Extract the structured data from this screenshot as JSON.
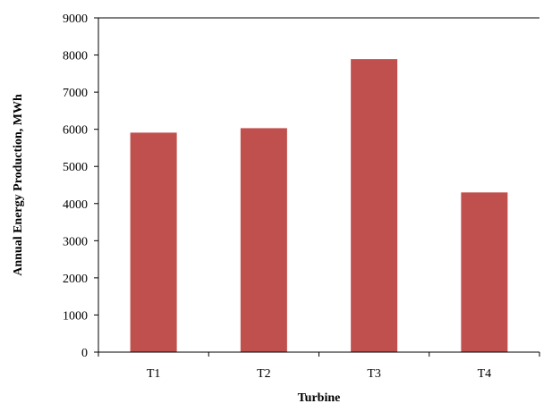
{
  "chart_data": {
    "type": "bar",
    "categories": [
      "T1",
      "T2",
      "T3",
      "T4"
    ],
    "values": [
      5910,
      6030,
      7890,
      4300
    ],
    "xlabel": "Turbine",
    "ylabel": "Annual Energy Production, MWh",
    "ylim": [
      0,
      9000
    ],
    "yticks": [
      0,
      1000,
      2000,
      3000,
      4000,
      5000,
      6000,
      7000,
      8000,
      9000
    ],
    "grid": false,
    "legend": "none",
    "bar_color": "#c0504d"
  }
}
